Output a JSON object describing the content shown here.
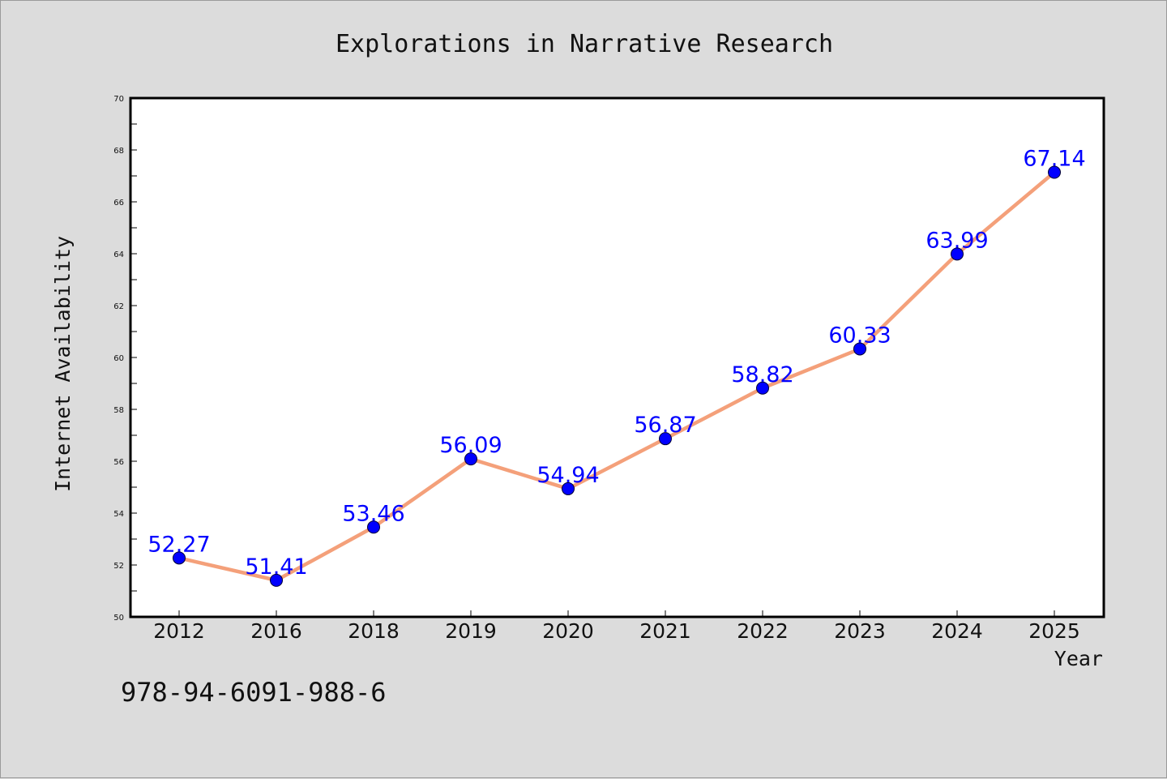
{
  "chart_data": {
    "type": "line",
    "title": "Explorations in Narrative Research",
    "xlabel": "Year",
    "ylabel": "Internet Availability",
    "categories": [
      "2012",
      "2016",
      "2018",
      "2019",
      "2020",
      "2021",
      "2022",
      "2023",
      "2024",
      "2025"
    ],
    "series": [
      {
        "values": [
          52.27,
          51.41,
          53.46,
          56.09,
          54.94,
          56.87,
          58.82,
          60.33,
          63.99,
          67.14
        ],
        "line_color": "#f4a07a",
        "marker_color": "#0000ff",
        "label_color": "#0000ff"
      }
    ],
    "data_labels": [
      "52.27",
      "51.41",
      "53.46",
      "56.09",
      "54.94",
      "56.87",
      "58.82",
      "60.33",
      "63.99",
      "67.14"
    ],
    "ylim": [
      50,
      70
    ],
    "yticks": [
      50,
      52,
      54,
      56,
      58,
      60,
      62,
      64,
      66,
      68,
      70
    ],
    "grid": false,
    "legend": "none"
  },
  "footer": {
    "isbn": "978-94-6091-988-6"
  }
}
